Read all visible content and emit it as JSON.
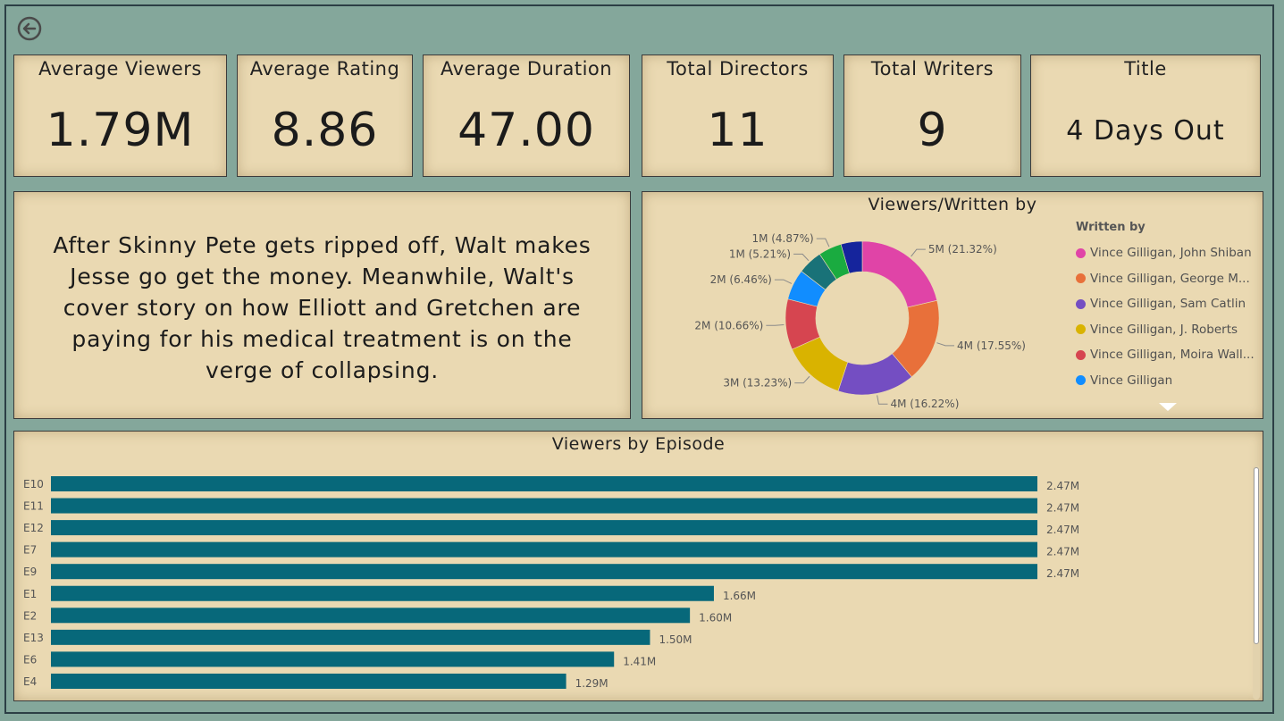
{
  "kpis": [
    {
      "label": "Average Viewers",
      "value": "1.79M"
    },
    {
      "label": "Average Rating",
      "value": "8.86"
    },
    {
      "label": "Average Duration",
      "value": "47.00"
    },
    {
      "label": "Total Directors",
      "value": "11"
    },
    {
      "label": "Total Writers",
      "value": "9"
    },
    {
      "label": "Title",
      "value": "4 Days Out"
    }
  ],
  "description": "After Skinny Pete gets ripped off, Walt makes Jesse go get the money. Meanwhile, Walt's cover story on how Elliott and Gretchen are paying for his medical treatment is on the verge of collapsing.",
  "donut": {
    "title": "Viewers/Written by",
    "legend_title": "Written by",
    "legend": [
      {
        "label": "Vince Gilligan, John Shiban",
        "color": "#e044a7"
      },
      {
        "label": "Vince Gilligan, George M...",
        "color": "#e8703a"
      },
      {
        "label": "Vince Gilligan, Sam Catlin",
        "color": "#744ec2"
      },
      {
        "label": "Vince Gilligan, J. Roberts",
        "color": "#d9b300"
      },
      {
        "label": "Vince Gilligan, Moira Wall...",
        "color": "#d64550"
      },
      {
        "label": "Vince Gilligan",
        "color": "#118dff"
      }
    ]
  },
  "chart_data": [
    {
      "type": "pie",
      "title": "Viewers/Written by",
      "legend_title": "Written by",
      "slices": [
        {
          "label": "5M (21.32%)",
          "percent": 21.32,
          "color": "#e044a7"
        },
        {
          "label": "4M (17.55%)",
          "percent": 17.55,
          "color": "#e8703a"
        },
        {
          "label": "4M (16.22%)",
          "percent": 16.22,
          "color": "#744ec2"
        },
        {
          "label": "3M (13.23%)",
          "percent": 13.23,
          "color": "#d9b300"
        },
        {
          "label": "2M (10.66%)",
          "percent": 10.66,
          "color": "#d64550"
        },
        {
          "label": "2M (6.46%)",
          "percent": 6.46,
          "color": "#118dff"
        },
        {
          "label": "1M (5.21%)",
          "percent": 5.21,
          "color": "#197278"
        },
        {
          "label": "1M (4.87%)",
          "percent": 4.87,
          "color": "#1aab40"
        },
        {
          "label": "",
          "percent": 4.48,
          "color": "#15249c"
        }
      ]
    },
    {
      "type": "bar",
      "orientation": "horizontal",
      "title": "Viewers by Episode",
      "categories": [
        "E10",
        "E11",
        "E12",
        "E7",
        "E9",
        "E1",
        "E2",
        "E13",
        "E6",
        "E4"
      ],
      "values": [
        2.47,
        2.47,
        2.47,
        2.47,
        2.47,
        1.66,
        1.6,
        1.5,
        1.41,
        1.29
      ],
      "labels": [
        "2.47M",
        "2.47M",
        "2.47M",
        "2.47M",
        "2.47M",
        "1.66M",
        "1.60M",
        "1.50M",
        "1.41M",
        "1.29M"
      ],
      "color": "#07687a",
      "xlim": [
        0,
        2.47
      ]
    }
  ]
}
